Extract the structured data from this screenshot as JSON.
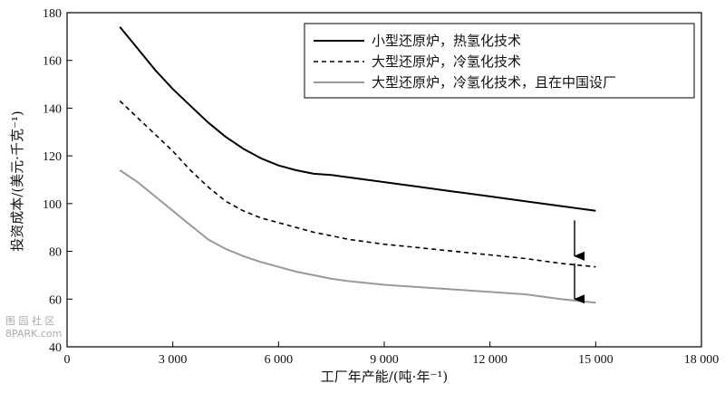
{
  "chart_data": {
    "type": "line",
    "title": "",
    "xlabel": "工厂年产能/(吨·年⁻¹)",
    "ylabel": "投资成本/(美元·千克⁻¹)",
    "xlim": [
      0,
      18000
    ],
    "ylim": [
      40,
      180
    ],
    "x_ticks": [
      "0",
      "3 000",
      "6 000",
      "9 000",
      "12 000",
      "15 000",
      "18 000"
    ],
    "y_ticks": [
      "40",
      "60",
      "80",
      "100",
      "120",
      "140",
      "160",
      "180"
    ],
    "grid": false,
    "legend_position": "top-right",
    "series": [
      {
        "name": "小型还原炉，热氢化技术",
        "color": "#000000",
        "dash": "solid",
        "x": [
          1500,
          2000,
          2500,
          3000,
          3500,
          4000,
          4500,
          5000,
          5500,
          6000,
          6500,
          7000,
          7500,
          8000,
          9000,
          10000,
          11000,
          12000,
          13000,
          14000,
          15000
        ],
        "y": [
          174,
          165,
          156,
          148,
          141,
          134,
          128,
          123,
          119,
          116,
          114,
          112.5,
          112,
          111,
          109,
          107,
          105,
          103,
          101,
          99,
          97
        ]
      },
      {
        "name": "大型还原炉，冷氢化技术",
        "color": "#000000",
        "dash": "dashed",
        "x": [
          1500,
          2000,
          2500,
          3000,
          3500,
          4000,
          4500,
          5000,
          5500,
          6000,
          6500,
          7000,
          7500,
          8000,
          9000,
          10000,
          11000,
          12000,
          13000,
          14000,
          15000
        ],
        "y": [
          143,
          136,
          129,
          122,
          114,
          107,
          101,
          97,
          94,
          92,
          90,
          88,
          86.5,
          85,
          83,
          81.5,
          80,
          78.5,
          77,
          75,
          73.5
        ]
      },
      {
        "name": "大型还原炉，冷氢化技术，且在中国设厂",
        "color": "#999999",
        "dash": "solid",
        "x": [
          1500,
          2000,
          2500,
          3000,
          3500,
          4000,
          4500,
          5000,
          5500,
          6000,
          6500,
          7000,
          7500,
          8000,
          9000,
          10000,
          11000,
          12000,
          13000,
          14000,
          15000
        ],
        "y": [
          114,
          109,
          103,
          97,
          91,
          85,
          81,
          78,
          75.5,
          73.5,
          71.5,
          70,
          68.5,
          67.5,
          66,
          65,
          64,
          63,
          62,
          60,
          58.5
        ]
      }
    ],
    "annotations": [
      {
        "type": "arrow",
        "x": 14400,
        "y_from": 93,
        "y_to": 78
      },
      {
        "type": "arrow",
        "x": 14400,
        "y_from": 75,
        "y_to": 60
      }
    ]
  },
  "watermark": {
    "line1": "图 园 社 区",
    "line2": "8PARK.com"
  }
}
